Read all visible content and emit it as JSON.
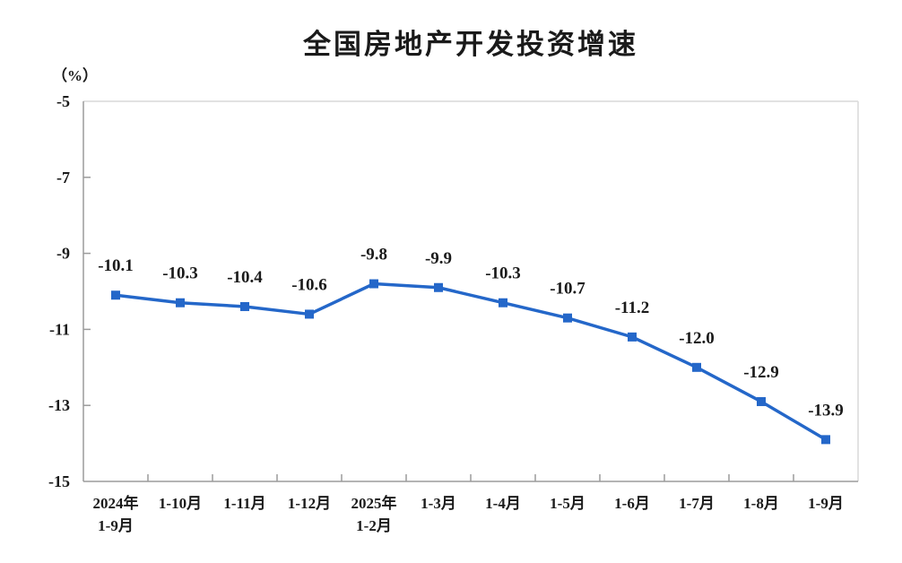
{
  "chart_data": {
    "type": "line",
    "title": "全国房地产开发投资增速",
    "unit": "（%）",
    "categories": [
      "2024年\n1-9月",
      "1-10月",
      "1-11月",
      "1-12月",
      "2025年\n1-2月",
      "1-3月",
      "1-4月",
      "1-5月",
      "1-6月",
      "1-7月",
      "1-8月",
      "1-9月"
    ],
    "values": [
      -10.1,
      -10.3,
      -10.4,
      -10.6,
      -9.8,
      -9.9,
      -10.3,
      -10.7,
      -11.2,
      -12.0,
      -12.9,
      -13.9
    ],
    "data_labels": [
      "-10.1",
      "-10.3",
      "-10.4",
      "-10.6",
      "-9.8",
      "-9.9",
      "-10.3",
      "-10.7",
      "-11.2",
      "-12.0",
      "-12.9",
      "-13.9"
    ],
    "ylim": [
      -15,
      -5
    ],
    "yticks": [
      -5,
      -7,
      -9,
      -11,
      -13,
      -15
    ],
    "grid": false,
    "legend": "none",
    "marker": "square",
    "line_color": "#2467C9",
    "label_color": "#1a1a1a",
    "axis_color": "#9b9b9b",
    "border_color": "#d9d9d9"
  }
}
